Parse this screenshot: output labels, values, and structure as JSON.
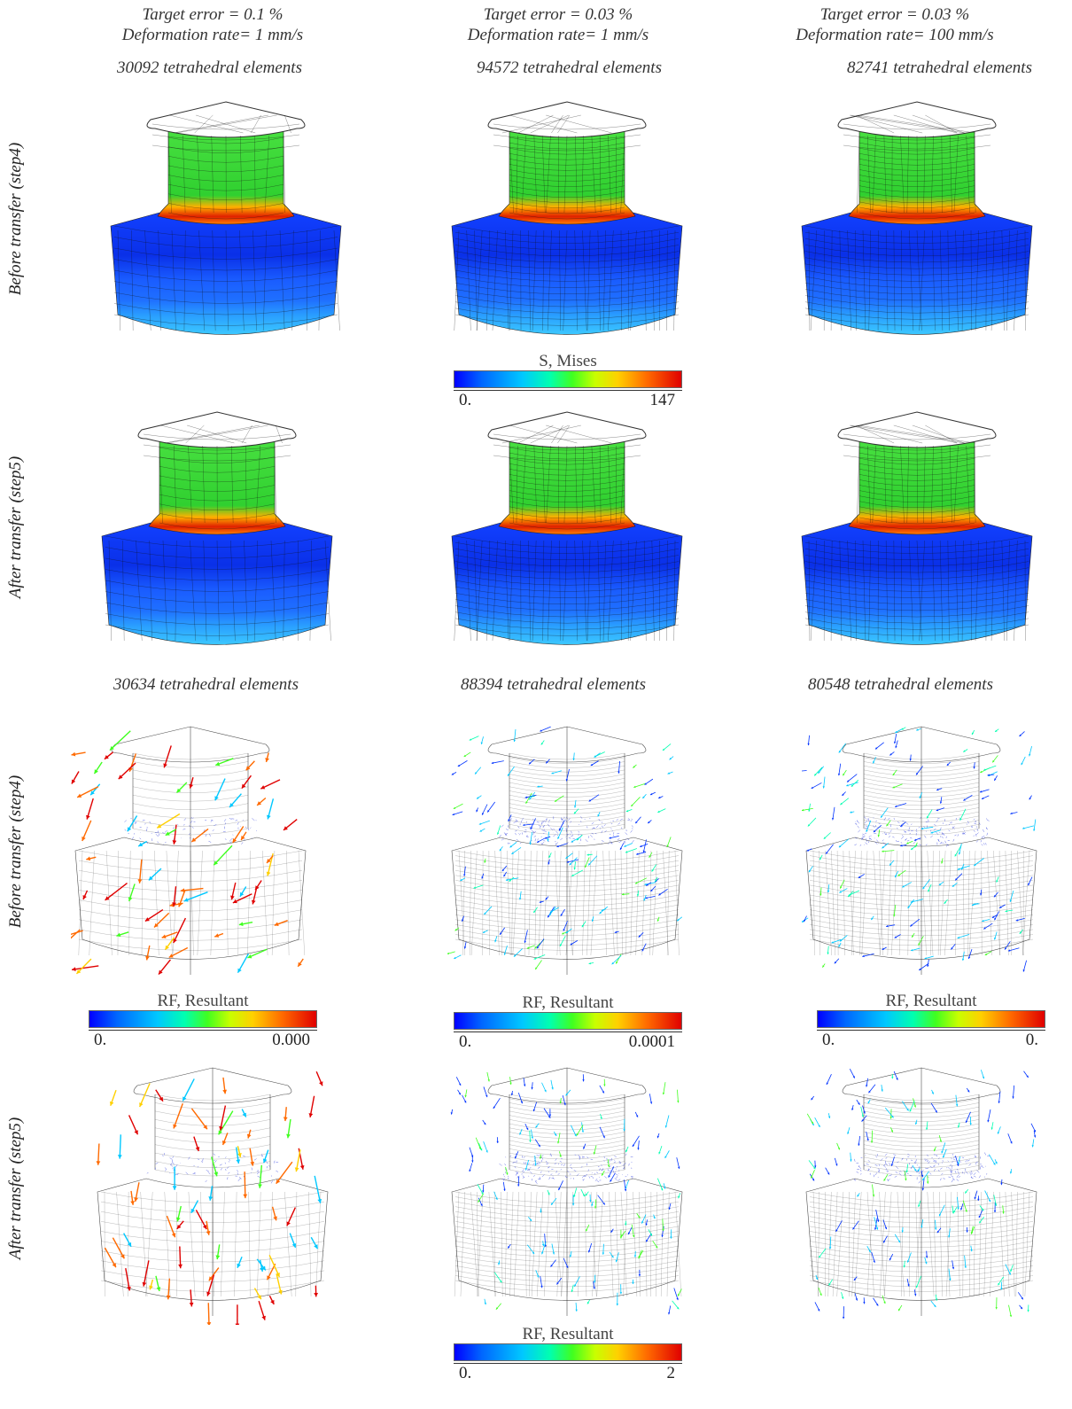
{
  "columns": [
    {
      "target_error": "Target error = 0.1 %",
      "rate": "Deformation rate= 1 mm/s",
      "elements_before": "30092 tetrahedral elements",
      "elements_after": "30634 tetrahedral elements"
    },
    {
      "target_error": "Target error = 0.03 %",
      "rate": "Deformation rate= 1 mm/s",
      "elements_before": "94572 tetrahedral elements",
      "elements_after": "88394 tetrahedral elements"
    },
    {
      "target_error": "Target error = 0.03 %",
      "rate": "Deformation rate= 100 mm/s",
      "elements_before": "82741 tetrahedral elements",
      "elements_after": "80548 tetrahedral elements"
    }
  ],
  "row_labels": {
    "before": "Before transfer (step4)",
    "after": "After transfer (step5)"
  },
  "legends": {
    "mises": {
      "title": "S, Mises",
      "min": "0.",
      "max": "147"
    },
    "rf_before_1": {
      "title": "RF, Resultant",
      "min": "0.",
      "max": "0.000"
    },
    "rf_before_2": {
      "title": "RF, Resultant",
      "min": "0.",
      "max": "0.0001"
    },
    "rf_before_3": {
      "title": "RF, Resultant",
      "min": "0.",
      "max": "0."
    },
    "rf_after": {
      "title": "RF, Resultant",
      "min": "0.",
      "max": "2"
    }
  },
  "colors": {
    "blue": "#0000ff",
    "cyan": "#00c8ff",
    "green": "#40ff20",
    "yellow": "#ffd000",
    "red": "#e00000"
  }
}
